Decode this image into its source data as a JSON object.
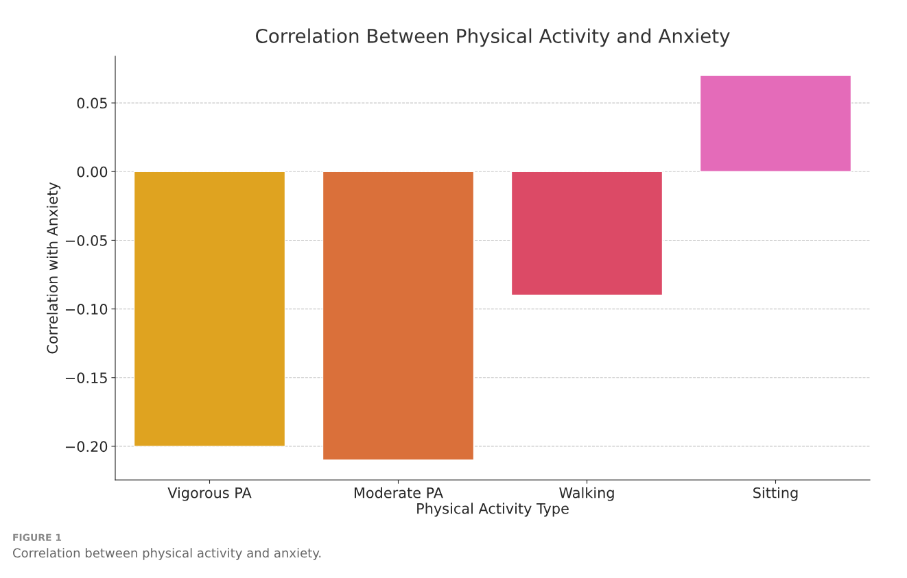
{
  "chart_data": {
    "type": "bar",
    "title": "Correlation Between Physical Activity and Anxiety",
    "xlabel": "Physical Activity Type",
    "ylabel": "Correlation with Anxiety",
    "categories": [
      "Vigorous PA",
      "Moderate PA",
      "Walking",
      "Sitting"
    ],
    "values": [
      -0.2,
      -0.21,
      -0.09,
      0.07
    ],
    "colors": [
      "#dfa320",
      "#da703a",
      "#dc4a66",
      "#e46bb9"
    ],
    "ylim": [
      -0.2245,
      0.084
    ],
    "yticks": [
      {
        "value": -0.2,
        "label": "−0.20"
      },
      {
        "value": -0.15,
        "label": "−0.15"
      },
      {
        "value": -0.1,
        "label": "−0.10"
      },
      {
        "value": -0.05,
        "label": "−0.05"
      },
      {
        "value": 0.0,
        "label": "0.00"
      },
      {
        "value": 0.05,
        "label": "0.05"
      }
    ],
    "grid": "y",
    "legend": false,
    "annotations": [
      "FIGURE 1",
      "Correlation between physical activity and anxiety."
    ]
  }
}
